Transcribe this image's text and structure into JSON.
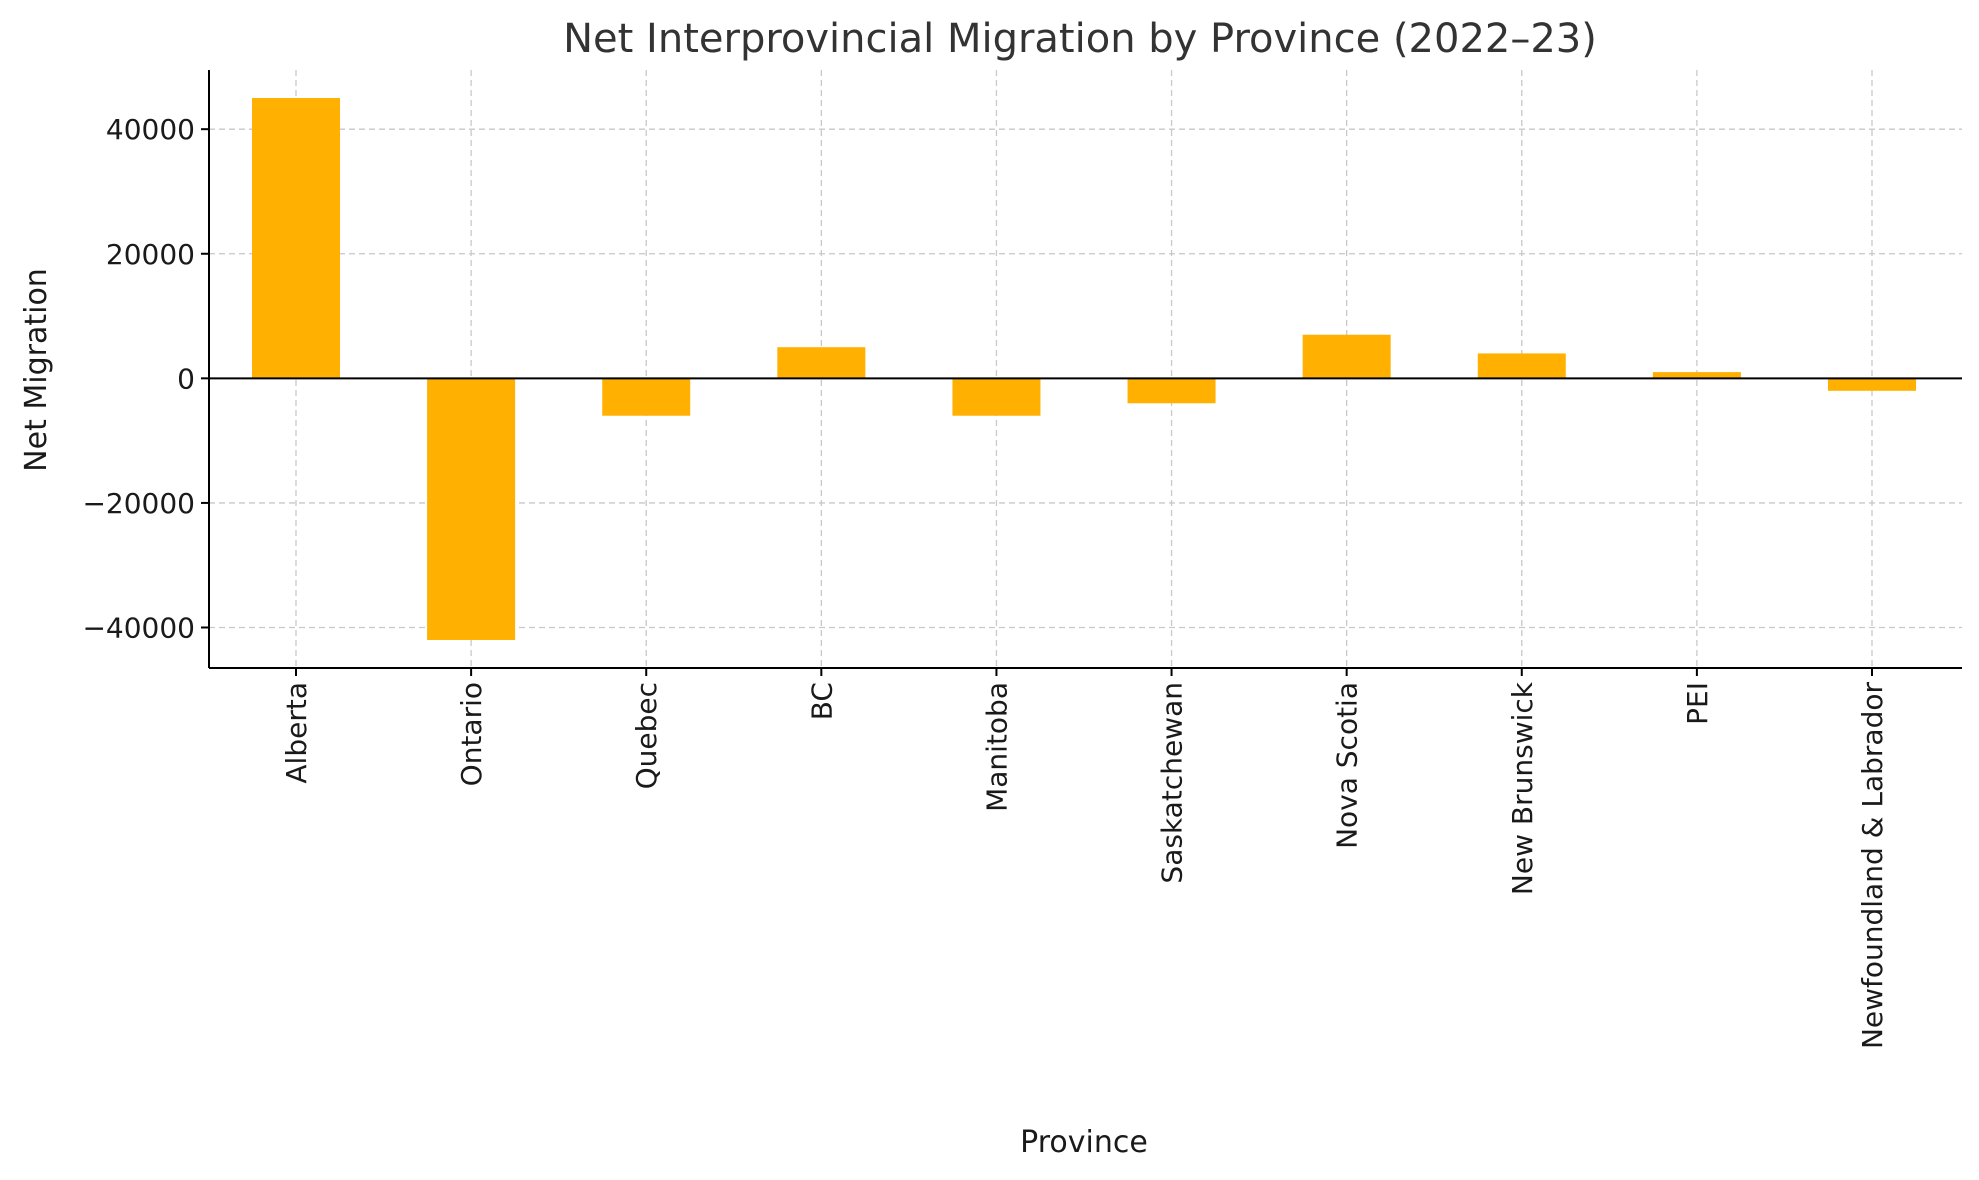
{
  "chart_data": {
    "type": "bar",
    "title": "Net Interprovincial Migration by Province (2022–23)",
    "xlabel": "Province",
    "ylabel": "Net Migration",
    "categories": [
      "Alberta",
      "Ontario",
      "Quebec",
      "BC",
      "Manitoba",
      "Saskatchewan",
      "Nova Scotia",
      "New Brunswick",
      "PEI",
      "Newfoundland & Labrador"
    ],
    "values": [
      45000,
      -42000,
      -6000,
      5000,
      -6000,
      -4000,
      7000,
      4000,
      1000,
      -2000
    ],
    "ylim": [
      -46500,
      49500
    ],
    "yticks": [
      -40000,
      -20000,
      0,
      20000,
      40000
    ],
    "ytick_labels": [
      "−40000",
      "−20000",
      "0",
      "20000",
      "40000"
    ],
    "grid": true,
    "zero_line": true,
    "bar_color": "#FFB000"
  }
}
